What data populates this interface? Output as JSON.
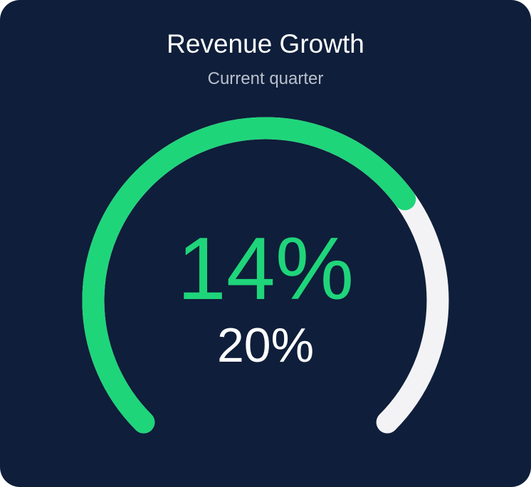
{
  "header": {
    "title": "Revenue Growth",
    "subtitle": "Current quarter"
  },
  "colors": {
    "background": "#0f1e3a",
    "value_arc": "#1fd57a",
    "track_arc": "#f3f3f5",
    "value_text": "#1fd57a",
    "target_text": "#ffffff"
  },
  "chart_data": {
    "type": "gauge",
    "title": "Revenue Growth",
    "subtitle": "Current quarter",
    "value": 14,
    "target": 20,
    "value_label": "14%",
    "target_label": "20%",
    "unit": "%"
  }
}
